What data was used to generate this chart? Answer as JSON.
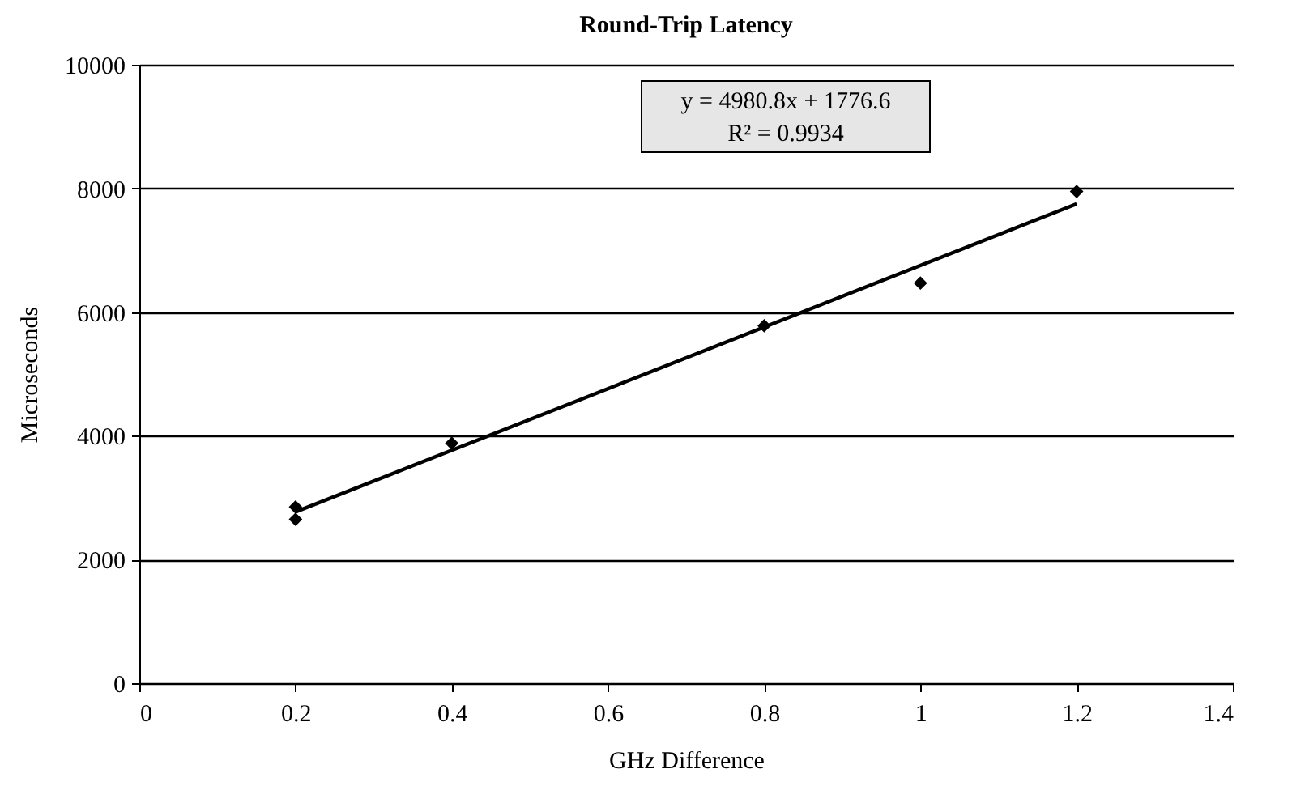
{
  "chart_data": {
    "type": "scatter",
    "title": "Round-Trip Latency",
    "xlabel": "GHz Difference",
    "ylabel": "Microseconds",
    "series": [
      {
        "type": "scatter",
        "color": "#000000",
        "marker": "diamond",
        "x": [
          0.2,
          0.2,
          0.4,
          0.8,
          1.0,
          1.2
        ],
        "values": [
          2850,
          2650,
          3880,
          5780,
          6470,
          7950
        ]
      },
      {
        "type": "line",
        "color": "#000000",
        "marker": "none",
        "x": [
          0.2,
          1.2
        ],
        "values": [
          2770,
          7750
        ]
      }
    ],
    "annotations": [
      "y = 4980.8x + 1776.6",
      "R² = 0.9934"
    ],
    "xlim": [
      0,
      1.4
    ],
    "xticks": [
      0,
      0.2,
      0.4,
      0.6,
      0.8,
      1,
      1.2,
      1.4
    ],
    "ylim": [
      0,
      10000
    ],
    "yticks": [
      0,
      2000,
      4000,
      6000,
      8000,
      10000
    ],
    "grid": "y",
    "legend": false,
    "line_style": "solid"
  }
}
